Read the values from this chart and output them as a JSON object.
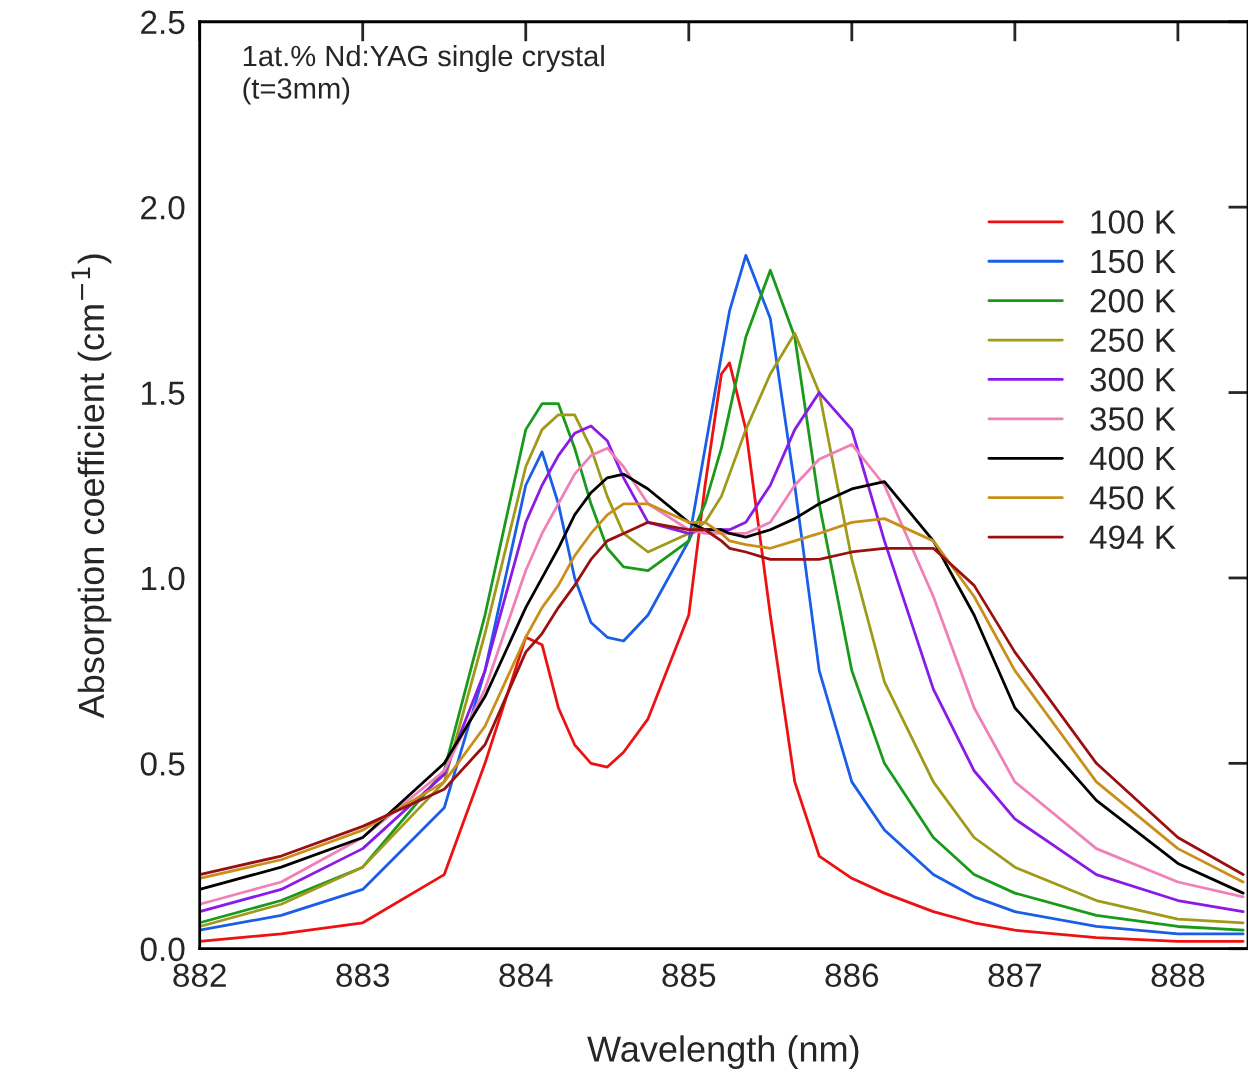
{
  "chart_data": {
    "type": "line",
    "xlabel": "Wavelength (nm)",
    "ylabel": "Absorption coefficient (cm$^{−1}$)",
    "annotations": [
      "1at.% Nd:YAG single crystal",
      "(t=3mm)"
    ],
    "x": [
      882,
      882.5,
      883,
      883.5,
      883.75,
      884,
      884.1,
      884.2,
      884.3,
      884.4,
      884.5,
      884.6,
      884.75,
      885,
      885.1,
      885.2,
      885.25,
      885.35,
      885.5,
      885.65,
      885.8,
      886,
      886.2,
      886.5,
      886.75,
      887,
      887.5,
      888,
      888.4
    ],
    "xlim": [
      882,
      888.43
    ],
    "xticks": [
      882,
      883,
      884,
      885,
      886,
      887,
      888
    ],
    "ylim": [
      0,
      2.5
    ],
    "yticks": [
      {
        "value": 0,
        "label": "0.0"
      },
      {
        "value": 0.5,
        "label": "0.5"
      },
      {
        "value": 1,
        "label": "1.0"
      },
      {
        "value": 1.5,
        "label": "1.5"
      },
      {
        "value": 2,
        "label": "2.0"
      },
      {
        "value": 2.5,
        "label": "2.5"
      }
    ],
    "grid": false,
    "legend": "top right",
    "marker": "none",
    "line_style": "solid",
    "tick_labels": "xy",
    "series": [
      {
        "name": "100 K",
        "color": "#ee1111",
        "values": [
          0.02,
          0.04,
          0.07,
          0.2,
          0.5,
          0.84,
          0.82,
          0.65,
          0.55,
          0.5,
          0.49,
          0.53,
          0.62,
          0.9,
          1.25,
          1.55,
          1.58,
          1.4,
          0.9,
          0.45,
          0.25,
          0.19,
          0.15,
          0.1,
          0.07,
          0.05,
          0.03,
          0.02,
          0.02
        ]
      },
      {
        "name": "150 K",
        "color": "#1a5ee8",
        "values": [
          0.05,
          0.09,
          0.16,
          0.38,
          0.75,
          1.25,
          1.34,
          1.2,
          1.0,
          0.88,
          0.84,
          0.83,
          0.9,
          1.1,
          1.35,
          1.6,
          1.72,
          1.87,
          1.7,
          1.25,
          0.75,
          0.45,
          0.32,
          0.2,
          0.14,
          0.1,
          0.06,
          0.04,
          0.04
        ]
      },
      {
        "name": "200 K",
        "color": "#1a9a1a",
        "values": [
          0.07,
          0.13,
          0.22,
          0.48,
          0.9,
          1.4,
          1.47,
          1.47,
          1.35,
          1.2,
          1.08,
          1.03,
          1.02,
          1.1,
          1.2,
          1.35,
          1.45,
          1.65,
          1.83,
          1.65,
          1.2,
          0.75,
          0.5,
          0.3,
          0.2,
          0.15,
          0.09,
          0.06,
          0.05
        ]
      },
      {
        "name": "250 K",
        "color": "#a09a1a",
        "values": [
          0.06,
          0.12,
          0.22,
          0.45,
          0.85,
          1.3,
          1.4,
          1.44,
          1.44,
          1.35,
          1.22,
          1.12,
          1.07,
          1.12,
          1.15,
          1.22,
          1.28,
          1.4,
          1.55,
          1.66,
          1.5,
          1.05,
          0.72,
          0.45,
          0.3,
          0.22,
          0.13,
          0.08,
          0.07
        ]
      },
      {
        "name": "300 K",
        "color": "#8a1ae8",
        "values": [
          0.1,
          0.16,
          0.27,
          0.47,
          0.75,
          1.15,
          1.25,
          1.33,
          1.39,
          1.41,
          1.37,
          1.27,
          1.15,
          1.12,
          1.13,
          1.13,
          1.13,
          1.15,
          1.25,
          1.4,
          1.5,
          1.4,
          1.1,
          0.7,
          0.48,
          0.35,
          0.2,
          0.13,
          0.1
        ]
      },
      {
        "name": "350 K",
        "color": "#f080b8",
        "values": [
          0.12,
          0.18,
          0.3,
          0.48,
          0.7,
          1.02,
          1.12,
          1.2,
          1.28,
          1.33,
          1.35,
          1.3,
          1.2,
          1.13,
          1.12,
          1.12,
          1.12,
          1.12,
          1.15,
          1.25,
          1.32,
          1.36,
          1.25,
          0.95,
          0.65,
          0.45,
          0.27,
          0.18,
          0.14
        ]
      },
      {
        "name": "400 K",
        "color": "#000000",
        "values": [
          0.16,
          0.22,
          0.3,
          0.5,
          0.68,
          0.92,
          1.0,
          1.08,
          1.17,
          1.23,
          1.27,
          1.28,
          1.24,
          1.15,
          1.13,
          1.13,
          1.12,
          1.11,
          1.13,
          1.16,
          1.2,
          1.24,
          1.26,
          1.1,
          0.9,
          0.65,
          0.4,
          0.23,
          0.15
        ]
      },
      {
        "name": "450 K",
        "color": "#c8901a",
        "values": [
          0.19,
          0.24,
          0.32,
          0.45,
          0.6,
          0.84,
          0.92,
          0.98,
          1.06,
          1.12,
          1.17,
          1.2,
          1.2,
          1.15,
          1.15,
          1.12,
          1.1,
          1.09,
          1.08,
          1.1,
          1.12,
          1.15,
          1.16,
          1.1,
          0.95,
          0.75,
          0.45,
          0.27,
          0.18
        ]
      },
      {
        "name": "494 K",
        "color": "#9a1010",
        "values": [
          0.2,
          0.25,
          0.33,
          0.43,
          0.55,
          0.8,
          0.85,
          0.92,
          0.98,
          1.05,
          1.1,
          1.12,
          1.15,
          1.13,
          1.13,
          1.1,
          1.08,
          1.07,
          1.05,
          1.05,
          1.05,
          1.07,
          1.08,
          1.08,
          0.98,
          0.8,
          0.5,
          0.3,
          0.2
        ]
      }
    ]
  }
}
